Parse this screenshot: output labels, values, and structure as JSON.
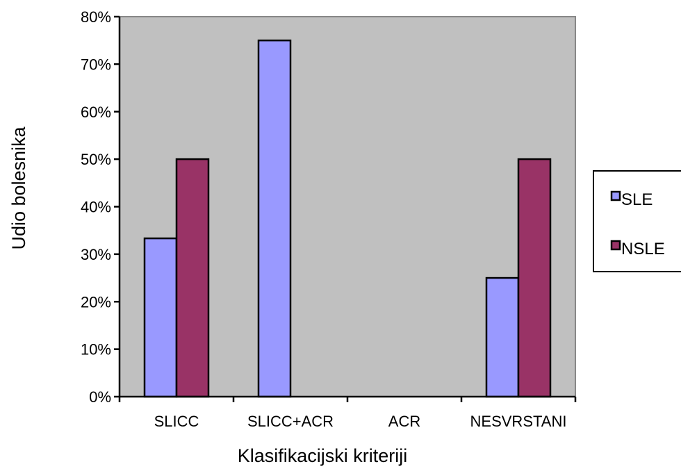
{
  "chart_data": {
    "type": "bar",
    "categories": [
      "SLICC",
      "SLICC+ACR",
      "ACR",
      "NESVRSTANI"
    ],
    "series": [
      {
        "name": "SLE",
        "values": [
          33.33,
          75,
          0,
          25
        ],
        "color": "#9999ff"
      },
      {
        "name": "NSLE",
        "values": [
          50,
          0,
          0,
          50
        ],
        "color": "#993366"
      }
    ],
    "title": "",
    "xlabel": "Klasifikacijski kriteriji",
    "ylabel": "Udio bolesnika",
    "ylim": [
      0,
      80
    ],
    "y_ticks": [
      "0%",
      "10%",
      "20%",
      "30%",
      "40%",
      "50%",
      "60%",
      "70%",
      "80%"
    ],
    "y_tick_values": [
      0,
      10,
      20,
      30,
      40,
      50,
      60,
      70,
      80
    ],
    "grid": false,
    "legend_position": "right",
    "plot_background": "#c0c0c0"
  }
}
